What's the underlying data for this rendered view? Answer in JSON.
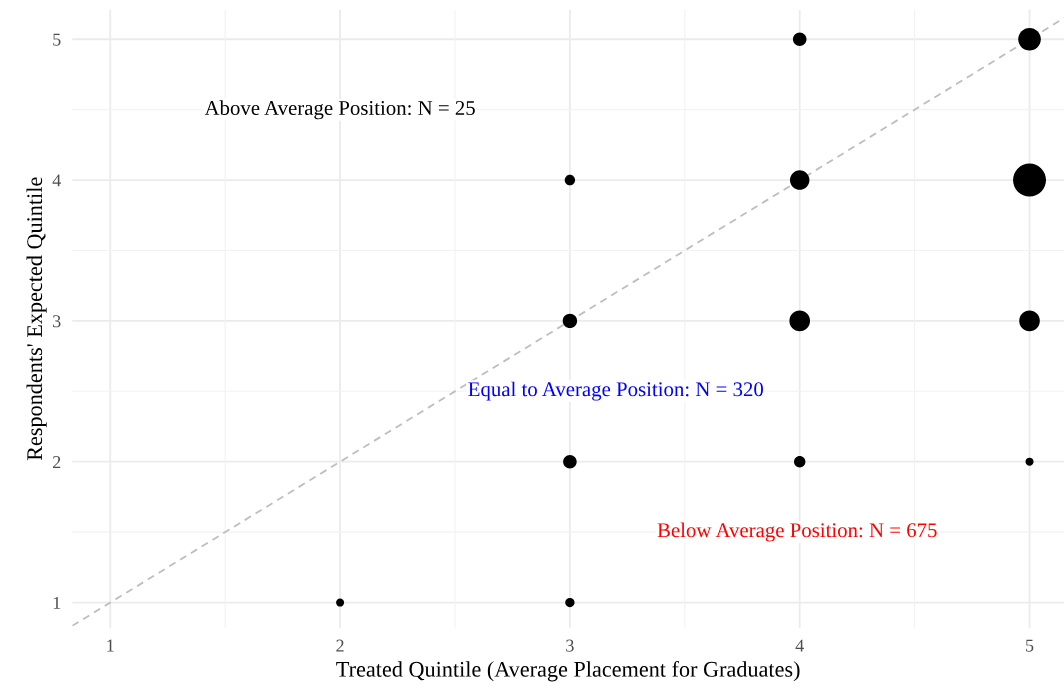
{
  "chart_data": {
    "type": "bubble",
    "xlabel": "Treated Quintile (Average Placement for Graduates)",
    "ylabel": "Respondents' Expected Quintile",
    "xlim": [
      0.835,
      5.15
    ],
    "ylim": [
      0.82,
      5.21
    ],
    "xticks": [
      1,
      2,
      3,
      4,
      5
    ],
    "yticks": [
      1,
      2,
      3,
      4,
      5
    ],
    "grid": true,
    "series": [
      {
        "color": "#000000",
        "x": [
          2,
          3,
          3,
          3,
          3,
          4,
          4,
          4,
          4,
          5,
          5,
          5,
          5
        ],
        "values": [
          1,
          1,
          2,
          3,
          4,
          2,
          3,
          4,
          5,
          2,
          3,
          4,
          5
        ],
        "sizes": [
          0.06,
          0.08,
          0.17,
          0.19,
          0.1,
          0.12,
          0.39,
          0.35,
          0.17,
          0.06,
          0.39,
          1,
          0.47
        ]
      },
      {
        "type": "line",
        "color": "#bebebe",
        "line_style": "dashed",
        "x": [
          0.835,
          5.15
        ],
        "values": [
          0.835,
          5.15
        ]
      }
    ],
    "annotations": [
      "Above Average Position: N = 25",
      "Equal to Average Position: N = 320",
      "Below Average Position: N = 675"
    ]
  }
}
